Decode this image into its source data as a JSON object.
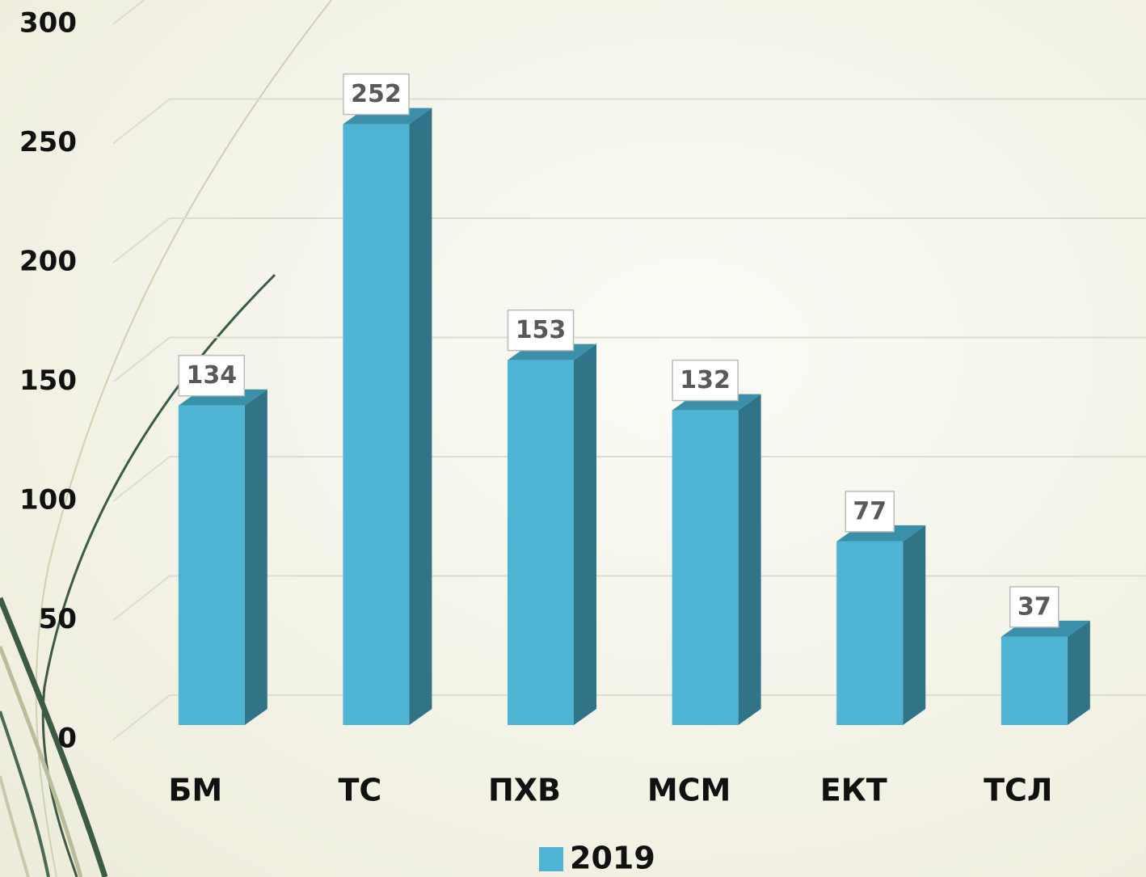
{
  "chart_data": {
    "type": "bar3d",
    "categories": [
      "БМ",
      "ТС",
      "ПХВ",
      "МСМ",
      "ЕКТ",
      "ТСЛ"
    ],
    "series": [
      {
        "name": "2019",
        "color": "#4fb3d3",
        "values": [
          134,
          252,
          153,
          132,
          77,
          37
        ]
      }
    ],
    "ylim": [
      0,
      300
    ],
    "yticks": [
      0,
      50,
      100,
      150,
      200,
      250,
      300
    ],
    "grid": true,
    "legend": "bottom"
  }
}
